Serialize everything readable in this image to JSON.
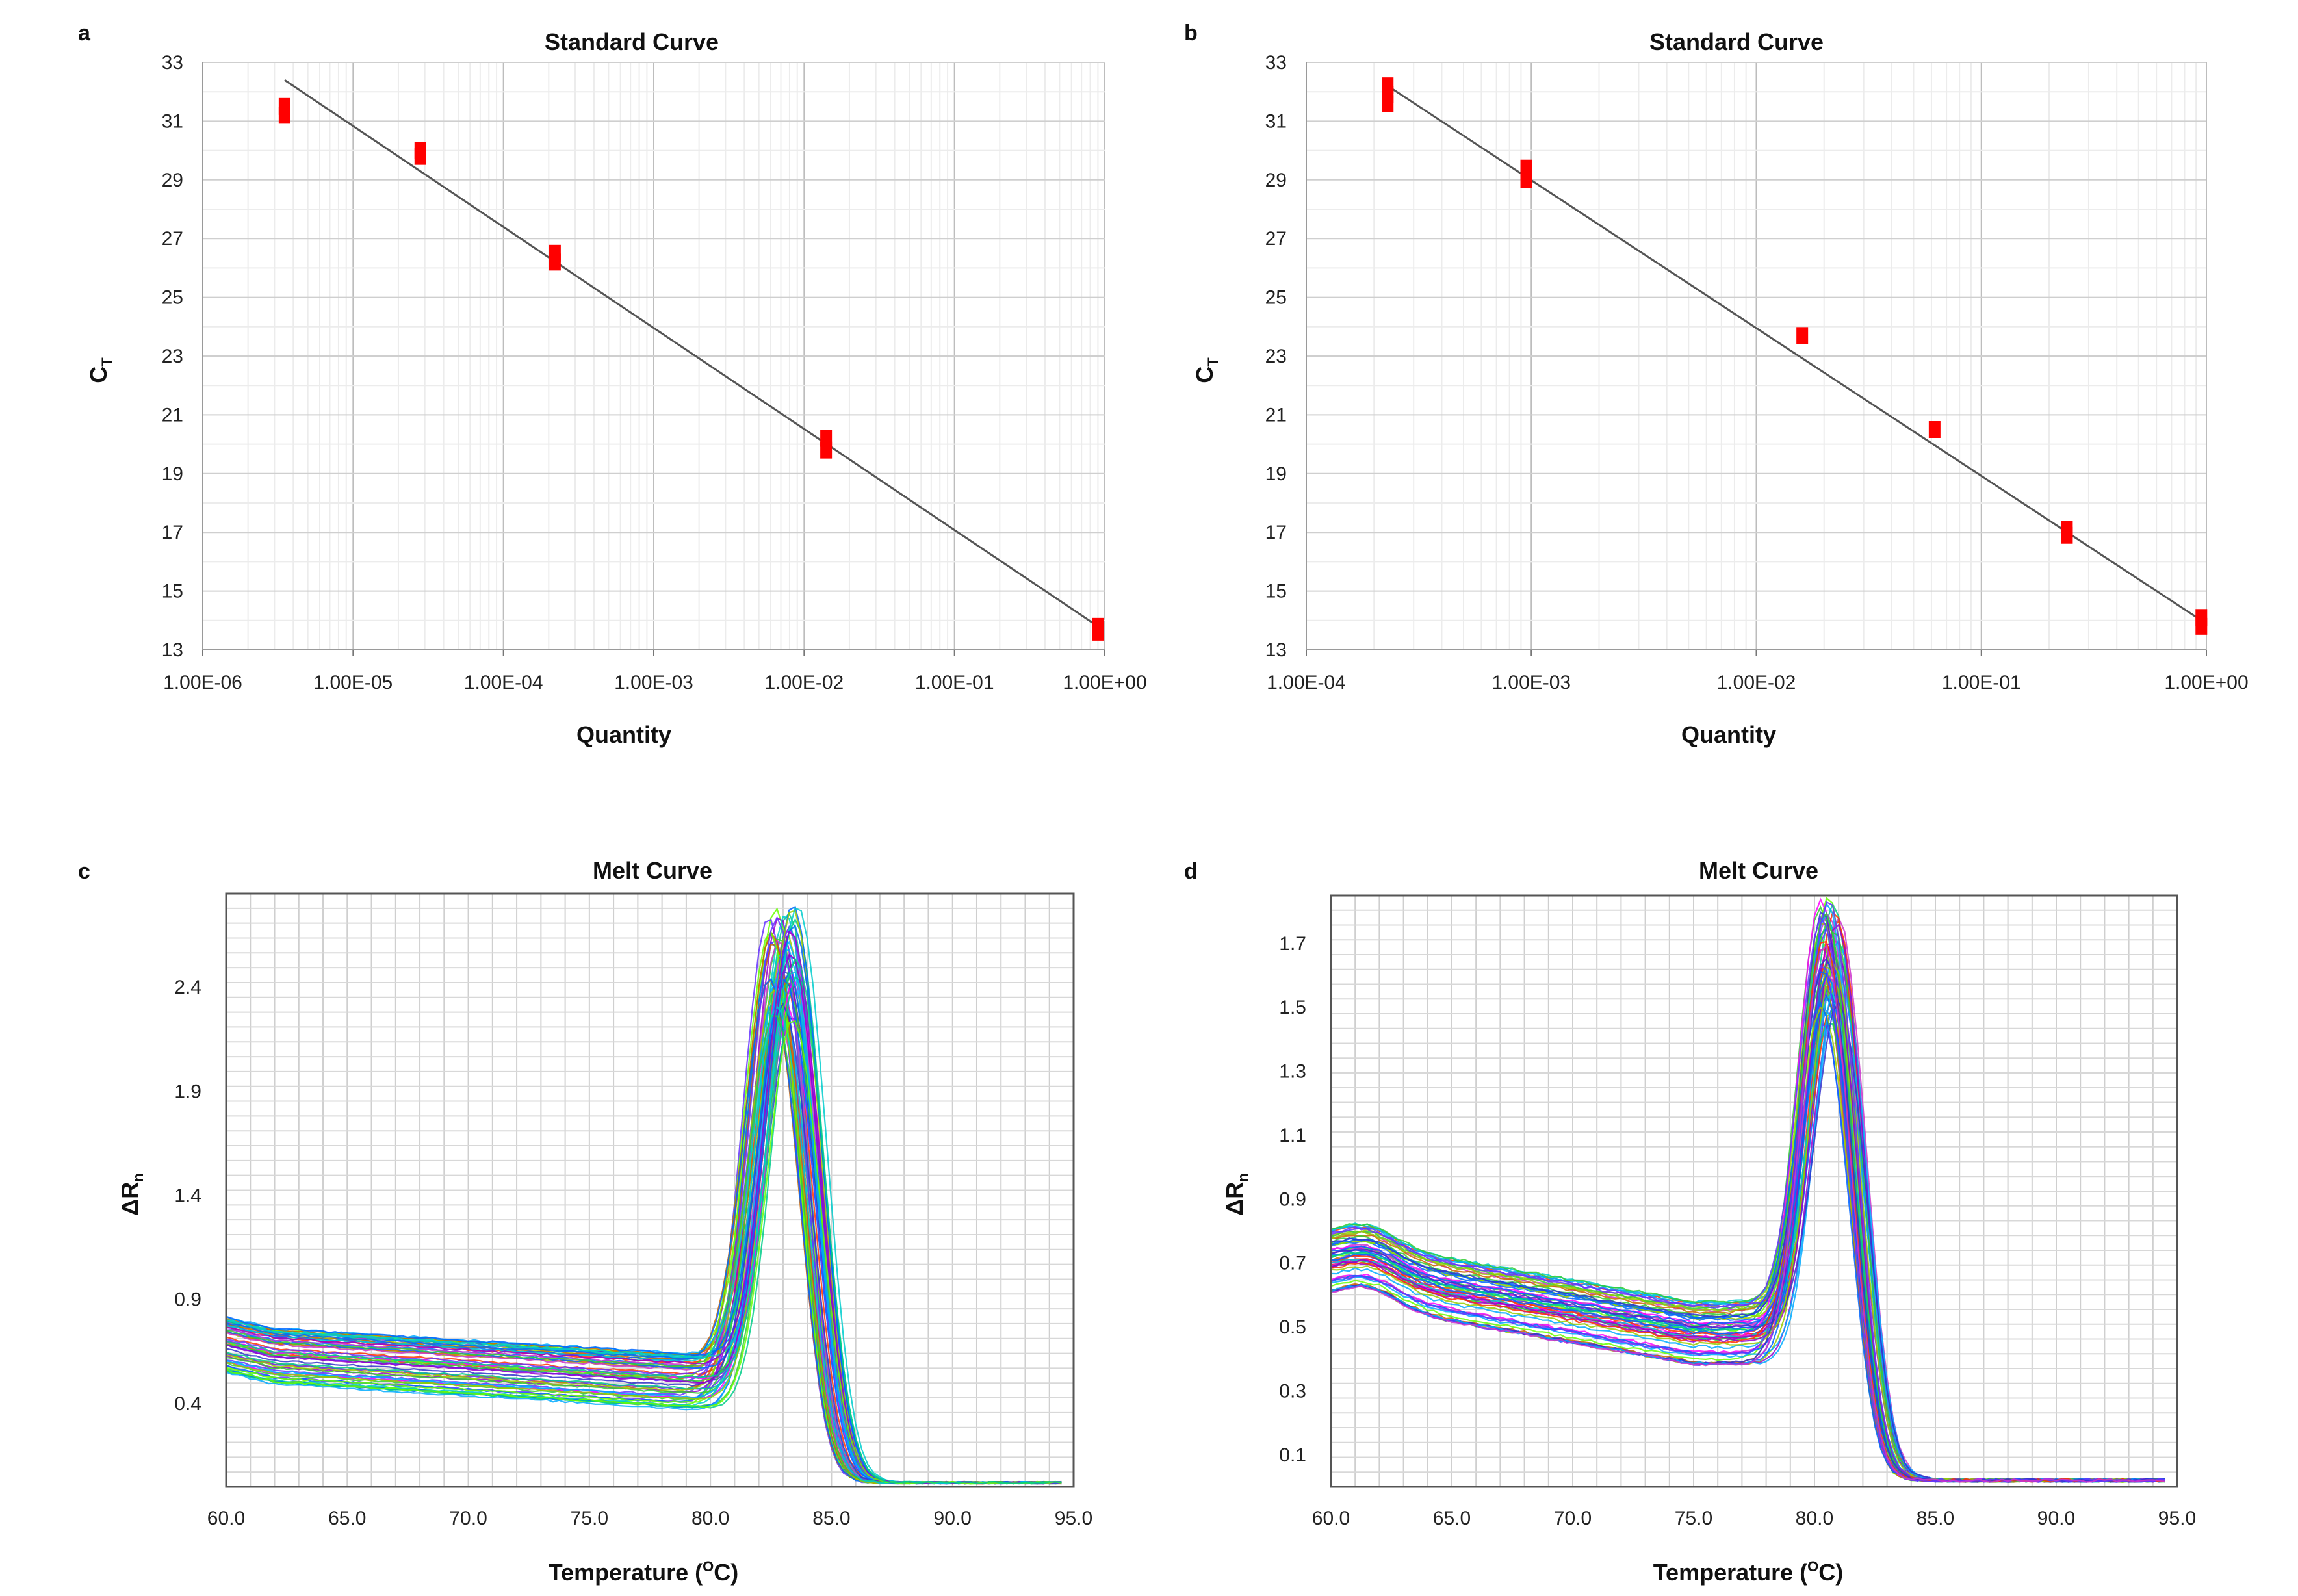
{
  "figure": {
    "background": "#ffffff",
    "marker_color": "#ff0000",
    "fit_line_color": "#555555",
    "grid_color": "#d9d9d9",
    "melt_palette": [
      "#ff00ff",
      "#cc33cc",
      "#9900cc",
      "#6633ff",
      "#3333cc",
      "#0066ff",
      "#00aaff",
      "#00cccc",
      "#00cc88",
      "#33cc33",
      "#66ff00",
      "#99cc00",
      "#cc6600",
      "#ff3300"
    ]
  },
  "chart_data": [
    {
      "panel": "a",
      "type": "scatter",
      "title": "Standard Curve",
      "xlabel": "Quantity",
      "ylabel": "CT",
      "ylabel_main": "C",
      "ylabel_sub": "T",
      "xscale": "log",
      "xlim": [
        1e-06,
        1
      ],
      "ylim": [
        13,
        33
      ],
      "xticks": [
        "1.00E-06",
        "1.00E-05",
        "1.00E-04",
        "1.00E-03",
        "1.00E-02",
        "1.00E-01",
        "1.00E+00"
      ],
      "yticks": [
        "13",
        "15",
        "17",
        "19",
        "21",
        "23",
        "25",
        "27",
        "29",
        "31",
        "33"
      ],
      "points": [
        {
          "x": 3.5e-06,
          "y": 31.5
        },
        {
          "x": 3.5e-06,
          "y": 31.2
        },
        {
          "x": 2.8e-05,
          "y": 30.0
        },
        {
          "x": 2.8e-05,
          "y": 29.8
        },
        {
          "x": 0.00022,
          "y": 26.5
        },
        {
          "x": 0.00022,
          "y": 26.2
        },
        {
          "x": 0.014,
          "y": 20.2
        },
        {
          "x": 0.014,
          "y": 19.8
        },
        {
          "x": 0.9,
          "y": 13.8
        },
        {
          "x": 0.9,
          "y": 13.6
        }
      ],
      "fit_line": {
        "x": [
          3.5e-06,
          0.9
        ],
        "y": [
          32.4,
          13.8
        ]
      }
    },
    {
      "panel": "b",
      "type": "scatter",
      "title": "Standard Curve",
      "xlabel": "Quantity",
      "ylabel": "CT",
      "ylabel_main": "C",
      "ylabel_sub": "T",
      "xscale": "log",
      "xlim": [
        0.0001,
        1
      ],
      "ylim": [
        13,
        33
      ],
      "xticks": [
        "1.00E-04",
        "1.00E-03",
        "1.00E-02",
        "1.00E-01",
        "1.00E+00"
      ],
      "yticks": [
        "13",
        "15",
        "17",
        "19",
        "21",
        "23",
        "25",
        "27",
        "29",
        "31",
        "33"
      ],
      "points": [
        {
          "x": 0.00023,
          "y": 32.2
        },
        {
          "x": 0.00023,
          "y": 31.9
        },
        {
          "x": 0.00023,
          "y": 31.6
        },
        {
          "x": 0.00095,
          "y": 29.4
        },
        {
          "x": 0.00095,
          "y": 29.0
        },
        {
          "x": 0.016,
          "y": 23.7
        },
        {
          "x": 0.062,
          "y": 20.5
        },
        {
          "x": 0.24,
          "y": 17.1
        },
        {
          "x": 0.24,
          "y": 16.9
        },
        {
          "x": 0.95,
          "y": 14.1
        },
        {
          "x": 0.95,
          "y": 13.8
        }
      ],
      "fit_line": {
        "x": [
          0.00023,
          0.95
        ],
        "y": [
          32.2,
          14.0
        ]
      }
    },
    {
      "panel": "c",
      "type": "line",
      "title": "Melt Curve",
      "xlabel": "Temperature (OC)",
      "xlabel_main": "Temperature (",
      "xlabel_sup": "O",
      "xlabel_tail": "C)",
      "ylabel": "ΔRn",
      "ylabel_main": "ΔR",
      "ylabel_sub": "n",
      "xlim": [
        60,
        95
      ],
      "ylim": [
        0,
        2.85
      ],
      "xticks": [
        "60.0",
        "65.0",
        "70.0",
        "75.0",
        "80.0",
        "85.0",
        "90.0",
        "95.0"
      ],
      "yticks": [
        "0.4",
        "0.9",
        "1.4",
        "1.9",
        "2.4"
      ],
      "series_profile": {
        "curve_count": 60,
        "shoulder_level": [
          0.5,
          0.78
        ],
        "peak_temperature": [
          82.4,
          83.6
        ],
        "peak_height": [
          2.25,
          2.8
        ],
        "baseline_end": 0.02
      }
    },
    {
      "panel": "d",
      "type": "line",
      "title": "Melt Curve",
      "xlabel": "Temperature (OC)",
      "xlabel_main": "Temperature (",
      "xlabel_sup": "O",
      "xlabel_tail": "C)",
      "ylabel": "ΔRn",
      "ylabel_main": "ΔR",
      "ylabel_sub": "n",
      "xlim": [
        60,
        95
      ],
      "ylim": [
        0,
        1.85
      ],
      "xticks": [
        "60.0",
        "65.0",
        "70.0",
        "75.0",
        "80.0",
        "85.0",
        "90.0",
        "95.0"
      ],
      "yticks": [
        "0.1",
        "0.3",
        "0.5",
        "0.7",
        "0.9",
        "1.1",
        "1.3",
        "1.5",
        "1.7"
      ],
      "series_profile": {
        "curve_count": 60,
        "shoulder_level": [
          0.58,
          0.78
        ],
        "peak_temperature": [
          80.2,
          81.0
        ],
        "peak_height": [
          1.45,
          1.85
        ],
        "baseline_end": 0.02
      }
    }
  ]
}
